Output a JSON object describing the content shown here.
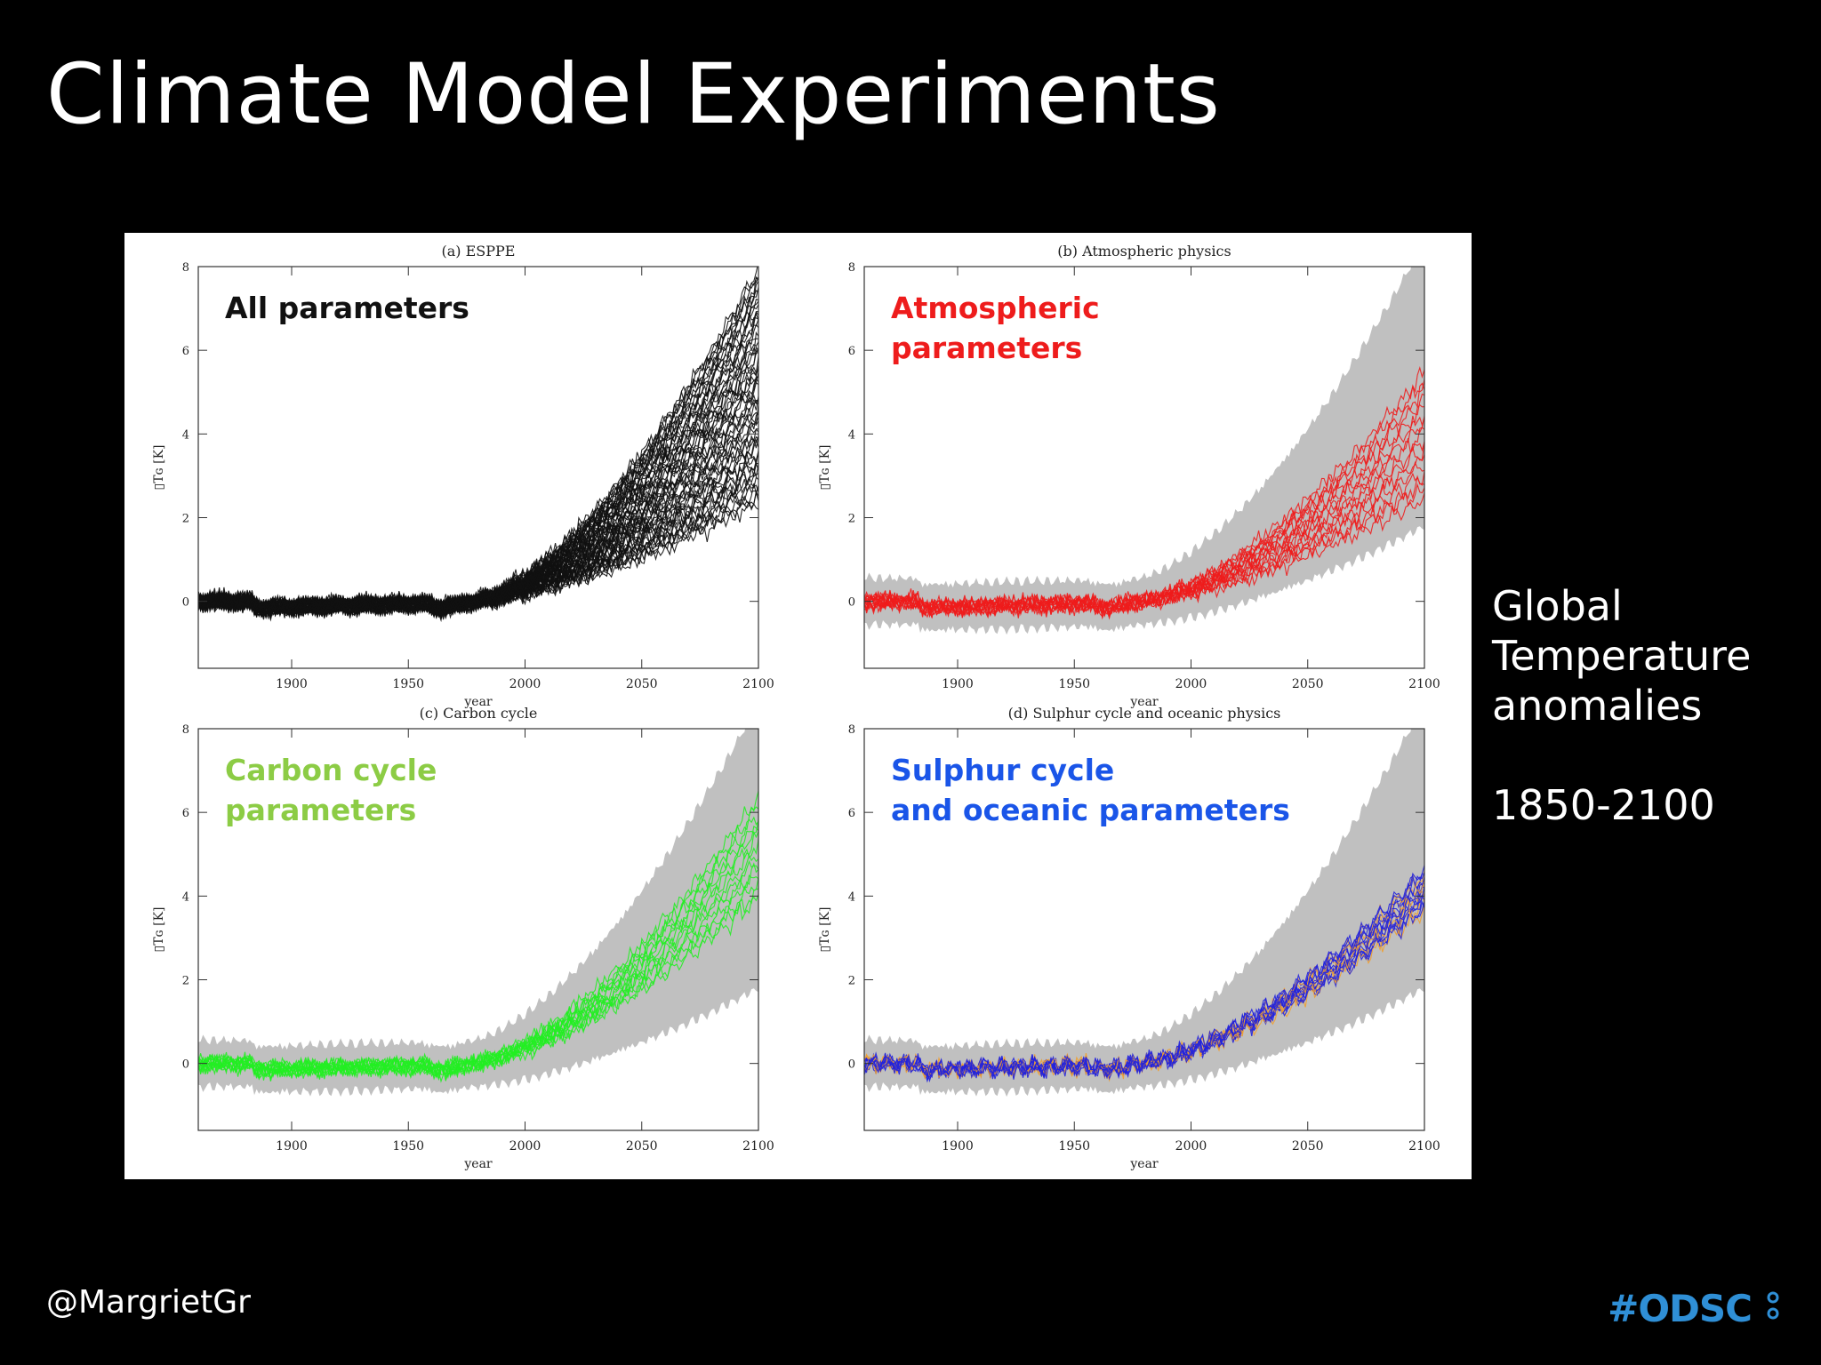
{
  "slide": {
    "title": "Climate Model Experiments",
    "caption_lines": [
      "Global",
      "Temperature",
      "anomalies"
    ],
    "caption_range": "1850-2100",
    "handle": "@MargrietGr",
    "brand": "#ODSC"
  },
  "colors": {
    "background": "#000000",
    "ensemble_black": "#111111",
    "envelope_gray": "#c0c0c0",
    "atmospheric_red": "#ee1c1c",
    "carbon_green": "#22ee22",
    "sulphur_blue": "#2222dd",
    "sulphur_orange": "#f0a030",
    "label_green": "#8ccc45",
    "label_blue": "#1a55e8"
  },
  "chart_data": [
    {
      "id": "a",
      "type": "line",
      "title": "(a) ESPPE",
      "overlay_label": [
        "All parameters"
      ],
      "label_color": "#111111",
      "line_color": "#111111",
      "second_color": null,
      "show_envelope": false,
      "xlabel": "year",
      "ylabel": "▯Tɢ [K]",
      "xlim": [
        1860,
        2100
      ],
      "ylim": [
        -1.6,
        8
      ],
      "xticks": [
        1900,
        1950,
        2000,
        2050,
        2100
      ],
      "yticks": [
        0,
        2,
        4,
        6,
        8
      ],
      "ensemble": {
        "members": 60,
        "start_mean": 0.0,
        "end_min": 2.2,
        "end_max": 7.8
      },
      "grid": false
    },
    {
      "id": "b",
      "type": "line",
      "title": "(b) Atmospheric physics",
      "overlay_label": [
        "Atmospheric",
        "parameters"
      ],
      "label_color": "#ee1c1c",
      "line_color": "#ee1c1c",
      "second_color": null,
      "show_envelope": true,
      "xlabel": "year",
      "ylabel": "▯Tɢ [K]",
      "xlim": [
        1860,
        2100
      ],
      "ylim": [
        -1.6,
        8
      ],
      "xticks": [
        1900,
        1950,
        2000,
        2050,
        2100
      ],
      "yticks": [
        0,
        2,
        4,
        6,
        8
      ],
      "ensemble": {
        "members": 16,
        "start_mean": 0.0,
        "end_min": 2.3,
        "end_max": 5.3
      },
      "envelope": {
        "end_min": 2.0,
        "end_max": 7.9
      },
      "grid": false
    },
    {
      "id": "c",
      "type": "line",
      "title": "(c) Carbon cycle",
      "overlay_label": [
        "Carbon cycle",
        "parameters"
      ],
      "label_color": "#8ccc45",
      "line_color": "#22ee22",
      "second_color": null,
      "show_envelope": true,
      "xlabel": "year",
      "ylabel": "▯Tɢ [K]",
      "xlim": [
        1860,
        2100
      ],
      "ylim": [
        -1.6,
        8
      ],
      "xticks": [
        1900,
        1950,
        2000,
        2050,
        2100
      ],
      "yticks": [
        0,
        2,
        4,
        6,
        8
      ],
      "ensemble": {
        "members": 14,
        "start_mean": 0.0,
        "end_min": 3.8,
        "end_max": 6.2
      },
      "envelope": {
        "end_min": 2.0,
        "end_max": 7.9
      },
      "grid": false
    },
    {
      "id": "d",
      "type": "line",
      "title": "(d) Sulphur cycle and oceanic physics",
      "overlay_label": [
        "Sulphur cycle",
        "and oceanic parameters"
      ],
      "label_color": "#1a55e8",
      "line_color": "#2222dd",
      "second_color": "#f0a030",
      "show_envelope": true,
      "xlabel": "year",
      "ylabel": "▯Tɢ [K]",
      "xlim": [
        1860,
        2100
      ],
      "ylim": [
        -1.6,
        8
      ],
      "xticks": [
        1900,
        1950,
        2000,
        2050,
        2100
      ],
      "yticks": [
        0,
        2,
        4,
        6,
        8
      ],
      "ensemble": {
        "members": 18,
        "start_mean": 0.0,
        "end_min": 3.5,
        "end_max": 4.5
      },
      "envelope": {
        "end_min": 2.0,
        "end_max": 7.9
      },
      "grid": false
    }
  ]
}
